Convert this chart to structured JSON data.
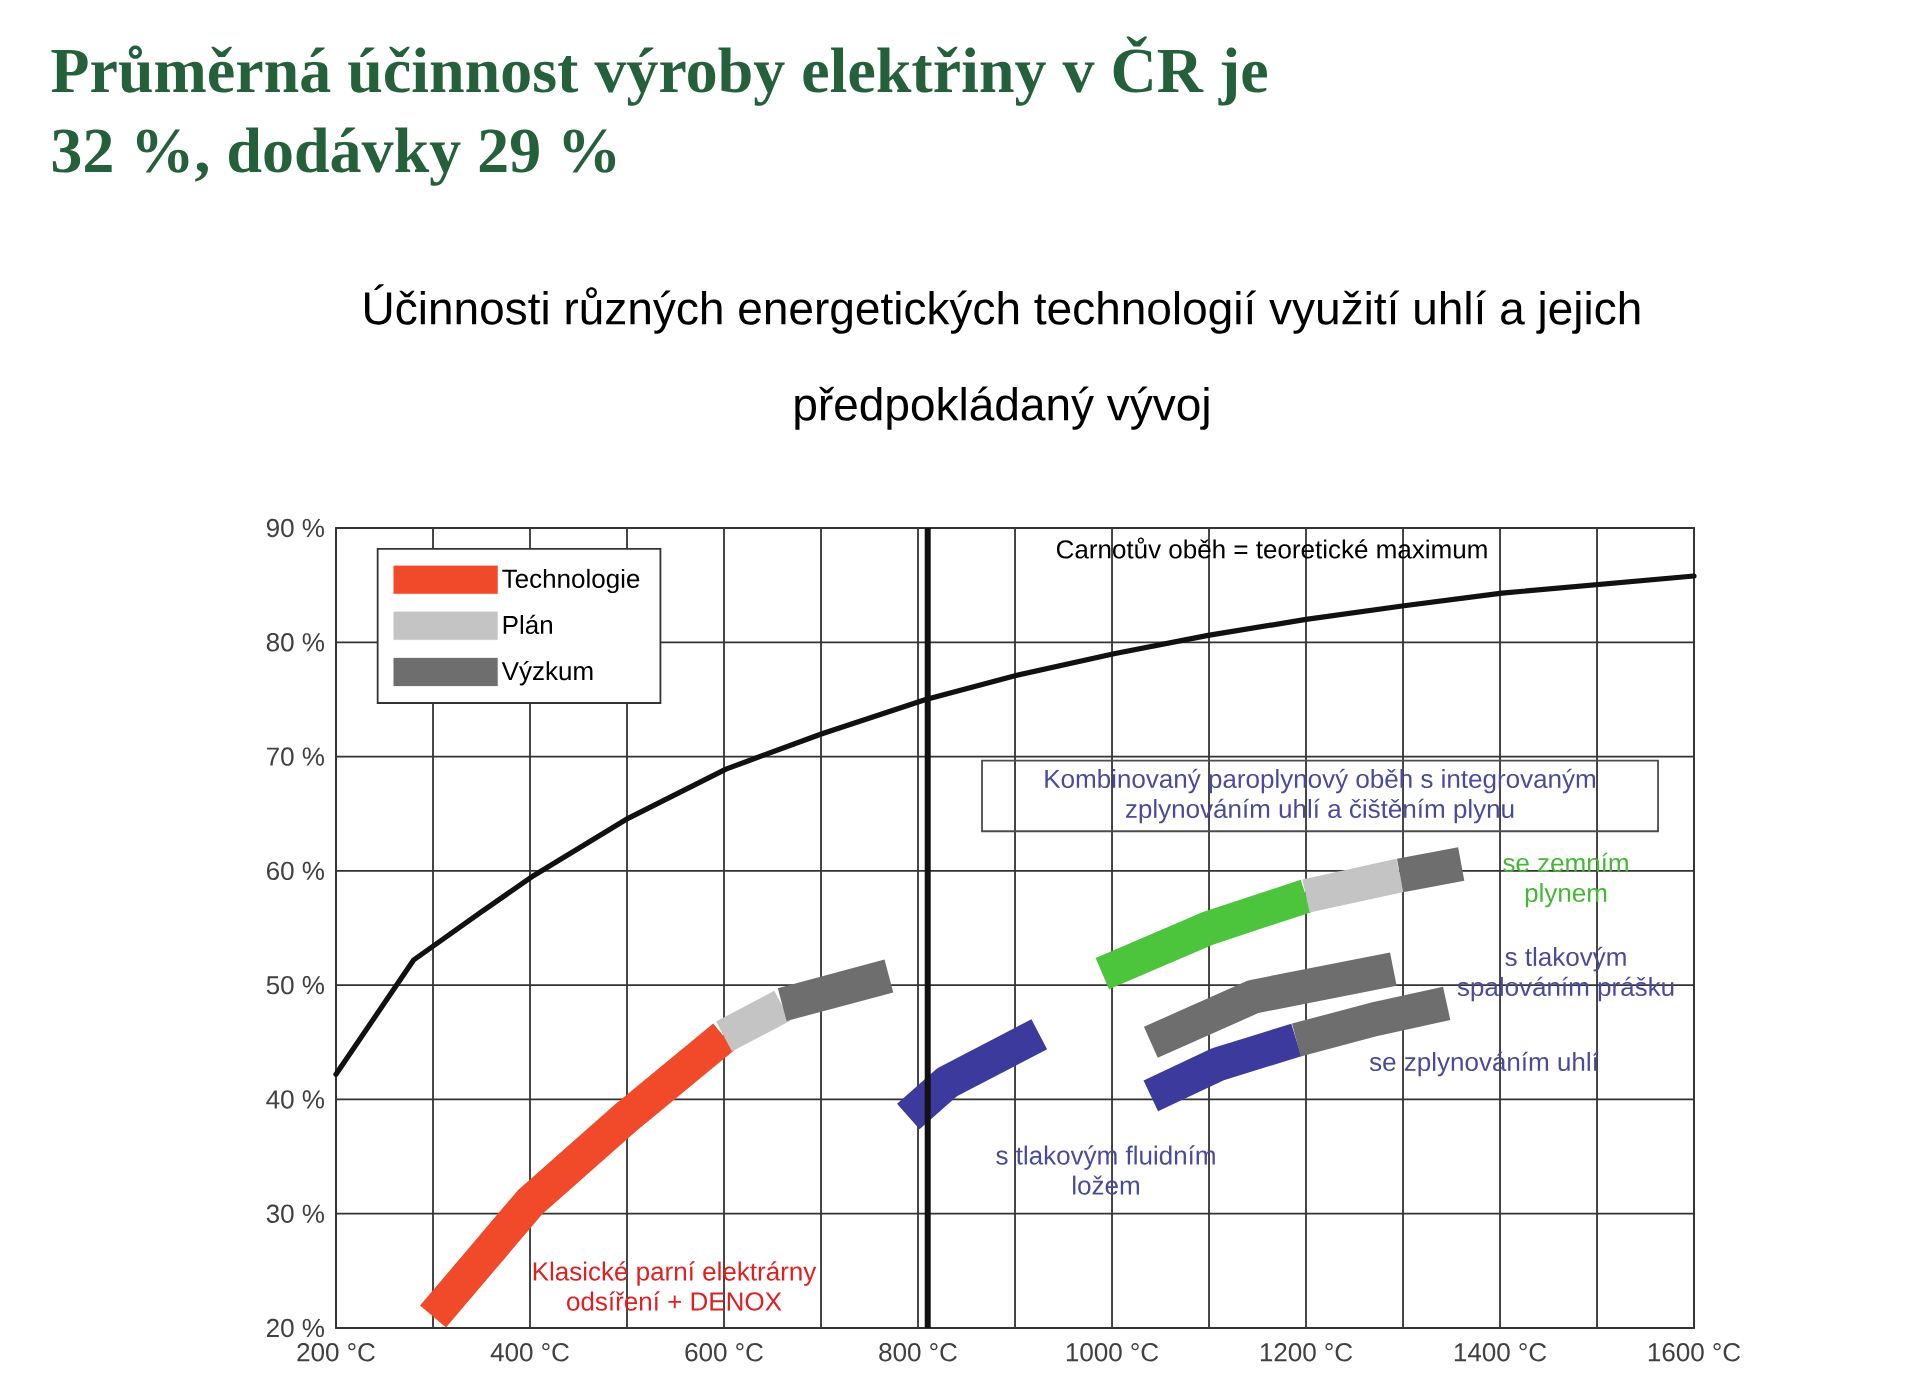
{
  "chart_data": {
    "type": "line",
    "title": "Průměrná účinnost výroby elektřiny v ČR je 32 %, dodávky 29 %",
    "subtitle": "Účinnosti různých energetických technologií využití uhlí a jejich předpokládaný vývoj",
    "xlim": [
      200,
      1600
    ],
    "ylim": [
      20,
      90
    ],
    "xticks": [
      {
        "value": 200,
        "label": "200 °C"
      },
      {
        "value": 300,
        "label": null
      },
      {
        "value": 400,
        "label": "400 °C"
      },
      {
        "value": 500,
        "label": null
      },
      {
        "value": 600,
        "label": "600 °C"
      },
      {
        "value": 700,
        "label": null
      },
      {
        "value": 800,
        "label": "800 °C"
      },
      {
        "value": 900,
        "label": null
      },
      {
        "value": 1000,
        "label": "1000 °C"
      },
      {
        "value": 1100,
        "label": null
      },
      {
        "value": 1200,
        "label": "1200 °C"
      },
      {
        "value": 1300,
        "label": null
      },
      {
        "value": 1400,
        "label": "1400 °C"
      },
      {
        "value": 1500,
        "label": null
      },
      {
        "value": 1600,
        "label": "1600 °C"
      }
    ],
    "yticks": [
      {
        "value": 20,
        "label": "20 %"
      },
      {
        "value": 30,
        "label": "30 %"
      },
      {
        "value": 40,
        "label": "40 %"
      },
      {
        "value": 50,
        "label": "50 %"
      },
      {
        "value": 60,
        "label": "60 %"
      },
      {
        "value": 70,
        "label": "70 %"
      },
      {
        "value": 80,
        "label": "80 %"
      },
      {
        "value": 90,
        "label": "90 %"
      }
    ],
    "grid": true,
    "legend": "top left",
    "series": [
      {
        "color": "#111111",
        "x": [
          200,
          280,
          348,
          404,
          499,
          602,
          701,
          808,
          901,
          1002,
          1099,
          1200,
          1301,
          1402,
          1600
        ],
        "values": [
          42.2,
          52.2,
          56.3,
          59.6,
          64.5,
          68.9,
          72,
          75,
          77.1,
          79,
          80.6,
          82,
          83.2,
          84.3,
          85.8
        ]
      },
      {
        "name": "Technologie",
        "color": "#f04a2a",
        "x": [
          300,
          400,
          500,
          600
        ],
        "values": [
          21,
          31,
          38.5,
          45.5
        ]
      },
      {
        "name": "Plán",
        "color": "#c4c4c4",
        "x": [
          600,
          660
        ],
        "values": [
          45.5,
          48.2
        ]
      },
      {
        "name": "Výzkum",
        "color": "#6e6e6e",
        "x": [
          660,
          770
        ],
        "values": [
          48.3,
          50.8
        ]
      },
      {
        "color": "#3c3a9c",
        "x": [
          790,
          830,
          925
        ],
        "values": [
          38.5,
          41.5,
          45.7
        ]
      },
      {
        "color": "#4cc43c",
        "x": [
          990,
          1100,
          1200
        ],
        "values": [
          51,
          55,
          57.8
        ]
      },
      {
        "color": "#c4c4c4",
        "x": [
          1200,
          1297
        ],
        "values": [
          57.8,
          59.6
        ]
      },
      {
        "color": "#6e6e6e",
        "x": [
          1297,
          1360
        ],
        "values": [
          59.6,
          60.6
        ]
      },
      {
        "color": "#6e6e6e",
        "x": [
          1040,
          1146,
          1290
        ],
        "values": [
          45,
          49,
          51.4
        ]
      },
      {
        "color": "#3c3a9c",
        "x": [
          1040,
          1110,
          1190
        ],
        "values": [
          40.3,
          43.1,
          45.2
        ]
      },
      {
        "color": "#6e6e6e",
        "x": [
          1190,
          1270,
          1345
        ],
        "values": [
          45.2,
          47,
          48.4
        ]
      }
    ],
    "ref_lines": [
      {
        "axis": "x",
        "value": 810,
        "color": "#111111"
      }
    ],
    "annotations": [
      "Carnotův oběh = teoretické maximum",
      "Kombinovaný paroplynový oběh s integrovaným zplynováním uhlí a čištěním plynu",
      "se zemním plynem",
      "s tlakovým spalováním prášku",
      "se zplynováním uhlí",
      "s tlakovým fluidním ložem",
      "Klasické parní elektrárny odsíření + DENOX"
    ]
  }
}
